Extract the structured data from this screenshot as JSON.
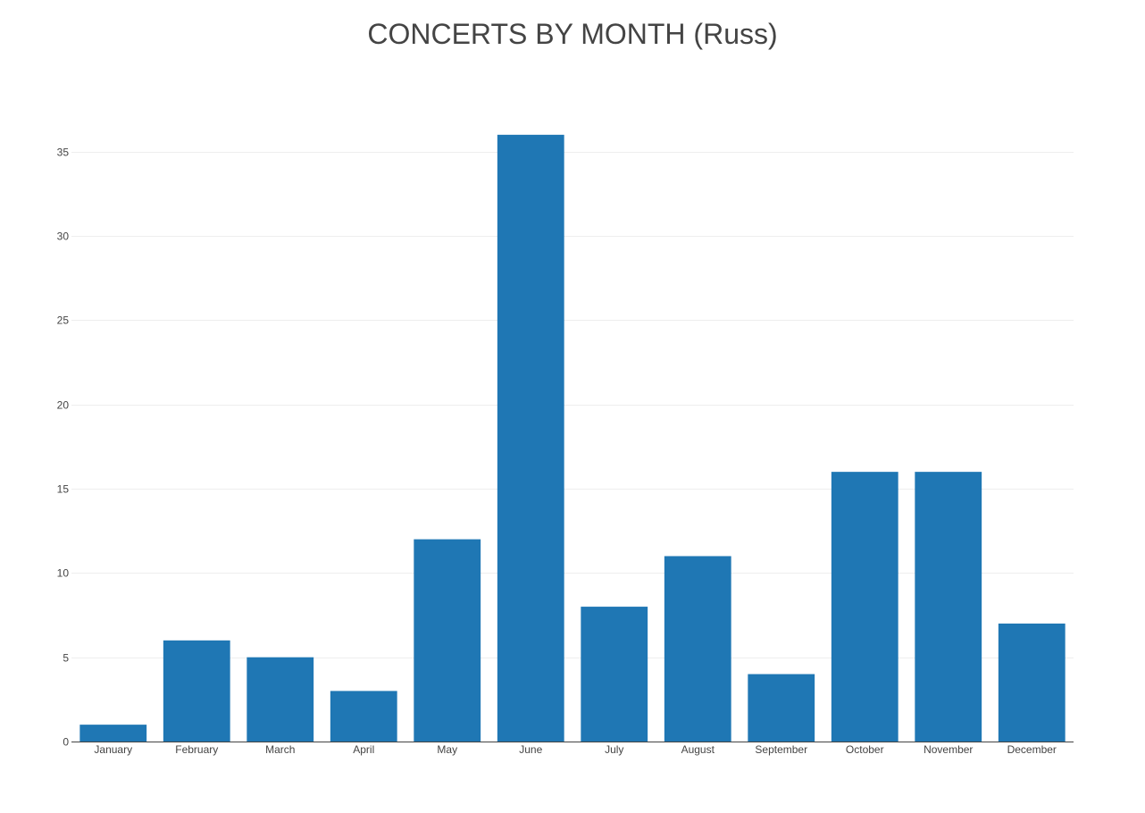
{
  "chart_data": {
    "type": "bar",
    "title": "CONCERTS BY MONTH (Russ)",
    "xlabel": "",
    "ylabel": "",
    "categories": [
      "January",
      "February",
      "March",
      "April",
      "May",
      "June",
      "July",
      "August",
      "September",
      "October",
      "November",
      "December"
    ],
    "values": [
      1,
      6,
      5,
      3,
      12,
      36,
      8,
      11,
      4,
      16,
      16,
      7
    ],
    "ylim": [
      0,
      37.9
    ],
    "yticks": [
      0,
      5,
      10,
      15,
      20,
      25,
      30,
      35
    ],
    "grid": true,
    "legend": "none",
    "bar_color": "#1f77b4"
  }
}
